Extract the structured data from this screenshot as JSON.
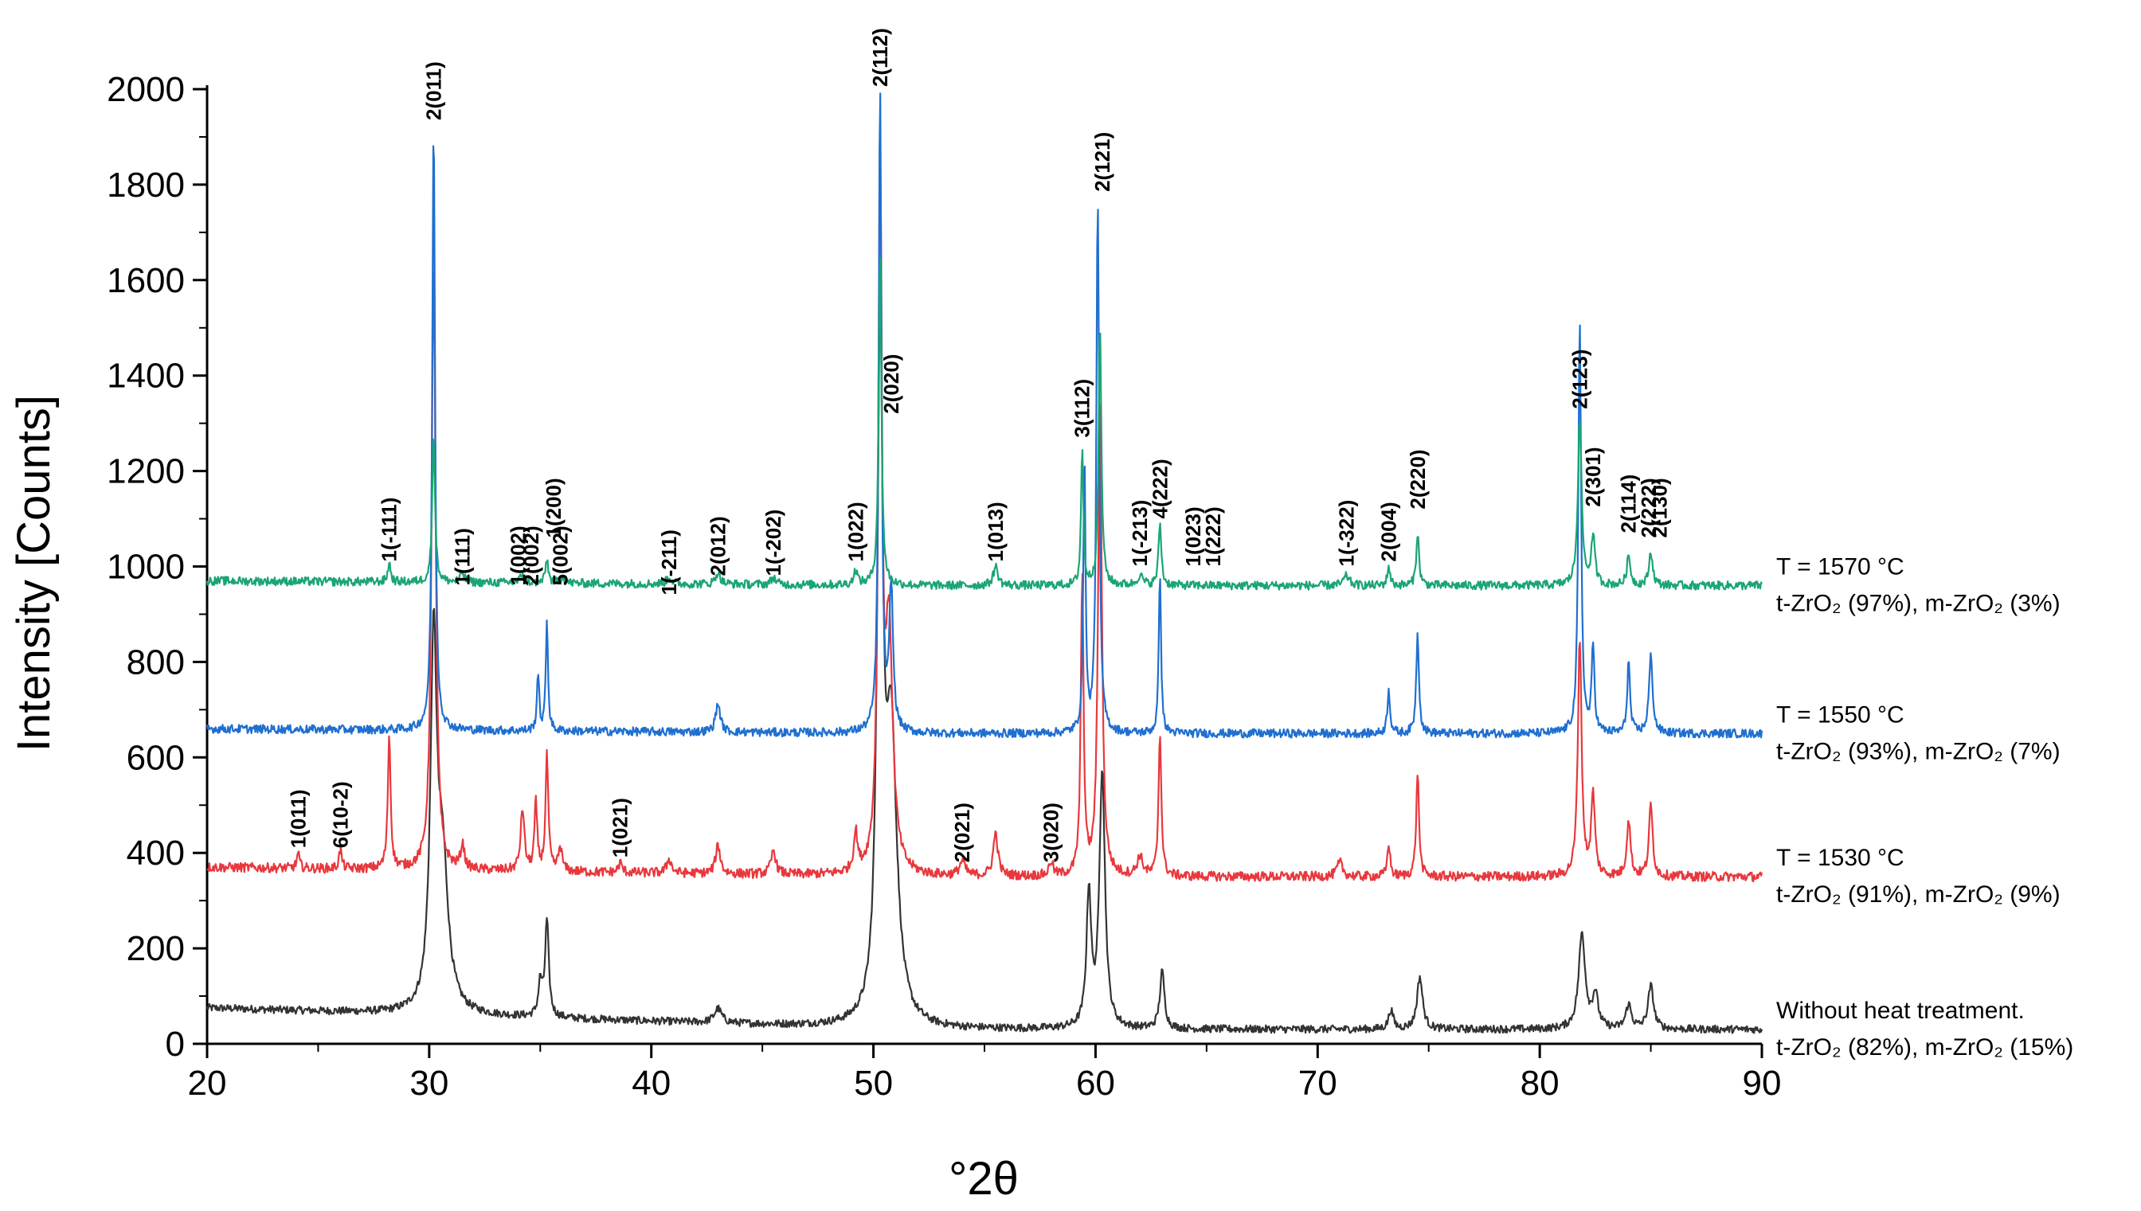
{
  "chart_data": {
    "type": "line",
    "title": "",
    "xlabel": "°2θ",
    "ylabel": "Intensity [Counts]",
    "xlim": [
      20,
      90
    ],
    "ylim": [
      0,
      2000
    ],
    "x_ticks": [
      20,
      30,
      40,
      50,
      60,
      70,
      80,
      90
    ],
    "y_ticks": [
      0,
      200,
      400,
      600,
      800,
      1000,
      1200,
      1400,
      1600,
      1800,
      2000
    ],
    "grid": false,
    "legend": "inline labels at right end of each trace",
    "series": [
      {
        "label_line1": "Without heat treatment.",
        "label_line2": "t-ZrO₂ (82%), m-ZrO₂ (15%)",
        "color": "#333333",
        "baseline": 30,
        "baseline_left": 75,
        "noise": 8,
        "peaks": [
          [
            30.2,
            740,
            0.35
          ],
          [
            30.6,
            300,
            0.6
          ],
          [
            35.3,
            200,
            0.2
          ],
          [
            35.0,
            70,
            0.2
          ],
          [
            43.0,
            30,
            0.4
          ],
          [
            50.3,
            1380,
            0.3
          ],
          [
            50.8,
            600,
            0.6
          ],
          [
            59.7,
            280,
            0.25
          ],
          [
            60.3,
            540,
            0.3
          ],
          [
            63.0,
            120,
            0.25
          ],
          [
            73.3,
            40,
            0.25
          ],
          [
            74.6,
            110,
            0.3
          ],
          [
            81.9,
            200,
            0.35
          ],
          [
            82.5,
            70,
            0.3
          ],
          [
            84.0,
            50,
            0.3
          ],
          [
            85.0,
            90,
            0.3
          ]
        ]
      },
      {
        "label_line1": "T = 1530 °C",
        "label_line2": "t-ZrO₂ (91%), m-ZrO₂ (9%)",
        "color": "#e8383d",
        "baseline": 350,
        "baseline_left": 370,
        "noise": 10,
        "peaks": [
          [
            24.1,
            30,
            0.15
          ],
          [
            26.0,
            40,
            0.15
          ],
          [
            28.2,
            280,
            0.15
          ],
          [
            30.2,
            1270,
            0.22
          ],
          [
            31.5,
            50,
            0.2
          ],
          [
            34.2,
            130,
            0.2
          ],
          [
            34.8,
            140,
            0.15
          ],
          [
            35.3,
            240,
            0.15
          ],
          [
            35.9,
            50,
            0.2
          ],
          [
            38.6,
            20,
            0.2
          ],
          [
            40.8,
            30,
            0.25
          ],
          [
            43.0,
            60,
            0.25
          ],
          [
            45.5,
            50,
            0.25
          ],
          [
            49.2,
            80,
            0.2
          ],
          [
            50.3,
            1450,
            0.2
          ],
          [
            50.7,
            500,
            0.4
          ],
          [
            54.0,
            30,
            0.3
          ],
          [
            55.5,
            90,
            0.25
          ],
          [
            58.0,
            30,
            0.2
          ],
          [
            59.4,
            620,
            0.15
          ],
          [
            60.2,
            1000,
            0.2
          ],
          [
            62.0,
            40,
            0.3
          ],
          [
            62.9,
            300,
            0.15
          ],
          [
            71.0,
            30,
            0.3
          ],
          [
            73.2,
            70,
            0.15
          ],
          [
            74.5,
            220,
            0.15
          ],
          [
            81.8,
            500,
            0.2
          ],
          [
            82.4,
            170,
            0.2
          ],
          [
            84.0,
            120,
            0.2
          ],
          [
            85.0,
            150,
            0.2
          ]
        ]
      },
      {
        "label_line1": "T = 1550 °C",
        "label_line2": "t-ZrO₂ (93%), m-ZrO₂ (7%)",
        "color": "#1f6fd0",
        "baseline": 650,
        "baseline_left": 660,
        "noise": 9,
        "peaks": [
          [
            30.2,
            1270,
            0.15
          ],
          [
            34.9,
            120,
            0.12
          ],
          [
            35.3,
            230,
            0.12
          ],
          [
            43.0,
            60,
            0.25
          ],
          [
            50.3,
            1350,
            0.15
          ],
          [
            50.8,
            300,
            0.2
          ],
          [
            59.5,
            580,
            0.12
          ],
          [
            60.1,
            1120,
            0.15
          ],
          [
            62.9,
            340,
            0.12
          ],
          [
            73.2,
            90,
            0.15
          ],
          [
            74.5,
            210,
            0.15
          ],
          [
            81.8,
            860,
            0.15
          ],
          [
            82.4,
            180,
            0.15
          ],
          [
            84.0,
            150,
            0.15
          ],
          [
            85.0,
            160,
            0.2
          ]
        ]
      },
      {
        "label_line1": "T = 1570 °C",
        "label_line2": "t-ZrO₂ (97%), m-ZrO₂ (3%)",
        "color": "#1aa574",
        "baseline": 960,
        "baseline_left": 970,
        "noise": 9,
        "peaks": [
          [
            28.2,
            40,
            0.15
          ],
          [
            30.2,
            310,
            0.15
          ],
          [
            31.5,
            20,
            0.2
          ],
          [
            34.2,
            20,
            0.2
          ],
          [
            35.3,
            50,
            0.15
          ],
          [
            36.0,
            15,
            0.2
          ],
          [
            40.8,
            15,
            0.25
          ],
          [
            43.0,
            25,
            0.25
          ],
          [
            45.5,
            15,
            0.25
          ],
          [
            49.2,
            30,
            0.2
          ],
          [
            50.3,
            690,
            0.15
          ],
          [
            55.5,
            40,
            0.25
          ],
          [
            59.4,
            290,
            0.12
          ],
          [
            60.2,
            540,
            0.15
          ],
          [
            62.0,
            20,
            0.3
          ],
          [
            62.9,
            130,
            0.15
          ],
          [
            71.3,
            20,
            0.3
          ],
          [
            73.2,
            40,
            0.15
          ],
          [
            74.5,
            110,
            0.15
          ],
          [
            81.8,
            350,
            0.2
          ],
          [
            82.4,
            100,
            0.2
          ],
          [
            84.0,
            60,
            0.2
          ],
          [
            85.0,
            70,
            0.2
          ]
        ]
      }
    ],
    "peak_labels": [
      {
        "text": "1(011)",
        "x": 24.1,
        "y": 410
      },
      {
        "text": "6(10-2)",
        "x": 26.0,
        "y": 410
      },
      {
        "text": "1(-111)",
        "x": 28.2,
        "y": 1010
      },
      {
        "text": "2(011)",
        "x": 30.2,
        "y": 1935
      },
      {
        "text": "1(111)",
        "x": 31.5,
        "y": 960
      },
      {
        "text": "1(002)",
        "x": 34.0,
        "y": 960
      },
      {
        "text": "2(002)",
        "x": 34.6,
        "y": 960
      },
      {
        "text": "5(002)",
        "x": 35.9,
        "y": 960
      },
      {
        "text": "1(200)",
        "x": 35.6,
        "y": 1060
      },
      {
        "text": "1(021)",
        "x": 38.6,
        "y": 390
      },
      {
        "text": "1(-211)",
        "x": 40.8,
        "y": 940
      },
      {
        "text": "2(012)",
        "x": 43.0,
        "y": 980
      },
      {
        "text": "1(-202)",
        "x": 45.5,
        "y": 980
      },
      {
        "text": "1(022)",
        "x": 49.2,
        "y": 1010
      },
      {
        "text": "2(112)",
        "x": 50.3,
        "y": 2005
      },
      {
        "text": "2(020)",
        "x": 50.8,
        "y": 1320
      },
      {
        "text": "2(021)",
        "x": 54.0,
        "y": 380
      },
      {
        "text": "1(013)",
        "x": 55.5,
        "y": 1010
      },
      {
        "text": "3(020)",
        "x": 58.0,
        "y": 380
      },
      {
        "text": "3(112)",
        "x": 59.4,
        "y": 1270
      },
      {
        "text": "2(121)",
        "x": 60.3,
        "y": 1785
      },
      {
        "text": "1(-213)",
        "x": 62.0,
        "y": 1000
      },
      {
        "text": "4(222)",
        "x": 62.9,
        "y": 1100
      },
      {
        "text": "1(023)",
        "x": 64.4,
        "y": 1000
      },
      {
        "text": "1(222)",
        "x": 65.3,
        "y": 1000
      },
      {
        "text": "1(-322)",
        "x": 71.3,
        "y": 1000
      },
      {
        "text": "2(004)",
        "x": 73.2,
        "y": 1010
      },
      {
        "text": "2(220)",
        "x": 74.5,
        "y": 1120
      },
      {
        "text": "2(123)",
        "x": 81.8,
        "y": 1330
      },
      {
        "text": "2(301)",
        "x": 82.4,
        "y": 1125
      },
      {
        "text": "2(114)",
        "x": 84.0,
        "y": 1070
      },
      {
        "text": "2(222)",
        "x": 84.9,
        "y": 1060
      },
      {
        "text": "2(130)",
        "x": 85.4,
        "y": 1060
      }
    ]
  }
}
